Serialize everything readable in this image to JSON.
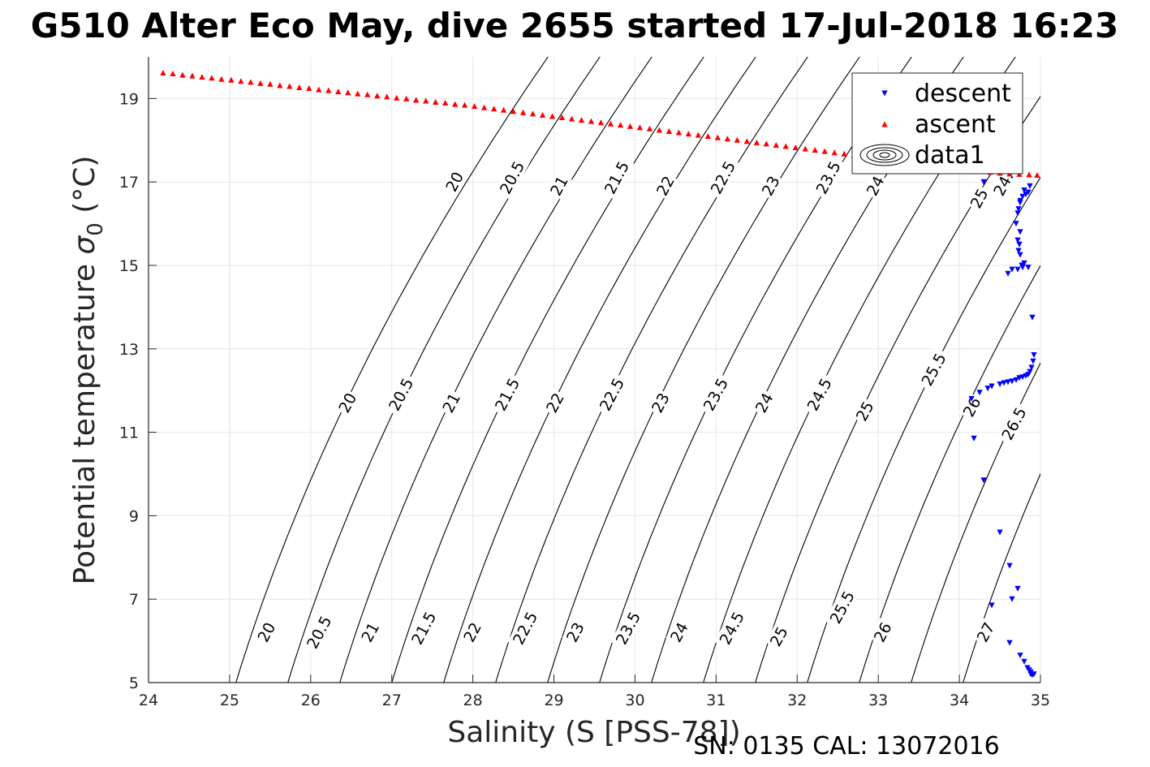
{
  "chart_data": {
    "type": "scatter",
    "title": "G510 Alter Eco May, dive 2655 started 17-Jul-2018 16:23",
    "xlabel": "Salinity (S [PSS-78])",
    "ylabel_prefix": "Potential temperature ",
    "ylabel_symbol": "σ",
    "ylabel_sub": "0",
    "ylabel_suffix": " (°C)",
    "footnote": "SN: 0135  CAL: 13072016",
    "xlim": [
      24,
      35
    ],
    "ylim": [
      5,
      20
    ],
    "xticks": [
      24,
      25,
      26,
      27,
      28,
      29,
      30,
      31,
      32,
      33,
      34,
      35
    ],
    "yticks": [
      5,
      7,
      9,
      11,
      13,
      15,
      17,
      19
    ],
    "grid": true,
    "legend_position": "top-right",
    "legend": [
      {
        "label": "descent",
        "marker": "triangle-down",
        "color": "#0000ff"
      },
      {
        "label": "ascent",
        "marker": "triangle-up",
        "color": "#ff0000"
      },
      {
        "label": "data1",
        "marker": "contour",
        "color": "#000000"
      }
    ],
    "contour_levels": [
      20,
      20.5,
      21,
      21.5,
      22,
      22.5,
      23,
      23.5,
      24,
      24.5,
      25,
      25.5,
      26,
      26.5,
      27
    ],
    "contour_color": "#000000",
    "contour_labels": [
      {
        "text": "20",
        "x": 25.46,
        "y": 6.2
      },
      {
        "text": "20.5",
        "x": 26.11,
        "y": 6.2
      },
      {
        "text": "21",
        "x": 26.74,
        "y": 6.2
      },
      {
        "text": "21.5",
        "x": 27.4,
        "y": 6.3
      },
      {
        "text": "22",
        "x": 28.0,
        "y": 6.2
      },
      {
        "text": "22.5",
        "x": 28.65,
        "y": 6.3
      },
      {
        "text": "23",
        "x": 29.27,
        "y": 6.2
      },
      {
        "text": "23.5",
        "x": 29.92,
        "y": 6.3
      },
      {
        "text": "24",
        "x": 30.55,
        "y": 6.2
      },
      {
        "text": "24.5",
        "x": 31.2,
        "y": 6.3
      },
      {
        "text": "25",
        "x": 31.78,
        "y": 6.1
      },
      {
        "text": "25.5",
        "x": 32.56,
        "y": 6.8
      },
      {
        "text": "26",
        "x": 33.06,
        "y": 6.2
      },
      {
        "text": "27",
        "x": 34.33,
        "y": 6.2
      },
      {
        "text": "20",
        "x": 26.46,
        "y": 11.7
      },
      {
        "text": "20.5",
        "x": 27.12,
        "y": 11.9
      },
      {
        "text": "21",
        "x": 27.74,
        "y": 11.7
      },
      {
        "text": "21.5",
        "x": 28.43,
        "y": 11.9
      },
      {
        "text": "22",
        "x": 29.02,
        "y": 11.7
      },
      {
        "text": "22.5",
        "x": 29.72,
        "y": 11.9
      },
      {
        "text": "23",
        "x": 30.32,
        "y": 11.7
      },
      {
        "text": "23.5",
        "x": 31.0,
        "y": 11.9
      },
      {
        "text": "24",
        "x": 31.6,
        "y": 11.7
      },
      {
        "text": "24.5",
        "x": 32.28,
        "y": 11.9
      },
      {
        "text": "25",
        "x": 32.84,
        "y": 11.5
      },
      {
        "text": "25.5",
        "x": 33.69,
        "y": 12.5
      },
      {
        "text": "26",
        "x": 34.16,
        "y": 11.6
      },
      {
        "text": "26.5",
        "x": 34.68,
        "y": 11.2
      },
      {
        "text": "20",
        "x": 27.78,
        "y": 17.0
      },
      {
        "text": "20.5",
        "x": 28.49,
        "y": 17.1
      },
      {
        "text": "21",
        "x": 29.07,
        "y": 16.9
      },
      {
        "text": "21.5",
        "x": 29.78,
        "y": 17.1
      },
      {
        "text": "22",
        "x": 30.38,
        "y": 16.9
      },
      {
        "text": "22.5",
        "x": 31.09,
        "y": 17.1
      },
      {
        "text": "23",
        "x": 31.68,
        "y": 16.9
      },
      {
        "text": "23.5",
        "x": 32.39,
        "y": 17.1
      },
      {
        "text": "24",
        "x": 32.97,
        "y": 16.9
      },
      {
        "text": "24.",
        "x": 34.55,
        "y": 16.95
      },
      {
        "text": "25",
        "x": 34.25,
        "y": 16.6
      }
    ],
    "series": [
      {
        "name": "descent",
        "marker": "triangle-down",
        "color": "#0000ff",
        "x": [
          34.3,
          34.8,
          34.87,
          34.85,
          34.82,
          34.78,
          34.75,
          34.75,
          34.73,
          34.72,
          34.7,
          34.75,
          34.72,
          34.74,
          34.73,
          34.75,
          34.77,
          34.8,
          34.78,
          34.85,
          34.72,
          34.65,
          34.6,
          34.9,
          34.92,
          34.91,
          34.89,
          34.87,
          34.85,
          34.82,
          34.78,
          34.74,
          34.7,
          34.65,
          34.6,
          34.55,
          34.5,
          34.4,
          34.35,
          34.25,
          34.15,
          34.18,
          34.3,
          34.5,
          34.62,
          34.65,
          34.72,
          34.4,
          34.62,
          34.75,
          34.8,
          34.84,
          34.86,
          34.88,
          34.9,
          34.92,
          34.9,
          34.88
        ],
        "y": [
          17.0,
          16.8,
          16.9,
          16.75,
          16.7,
          16.65,
          16.55,
          16.5,
          16.35,
          16.25,
          16.0,
          15.8,
          15.6,
          15.5,
          15.35,
          15.25,
          15.0,
          15.05,
          14.95,
          14.95,
          14.9,
          14.9,
          14.8,
          13.75,
          12.85,
          12.7,
          12.55,
          12.45,
          12.38,
          12.35,
          12.32,
          12.3,
          12.25,
          12.22,
          12.2,
          12.18,
          12.15,
          12.1,
          12.05,
          11.95,
          11.8,
          10.85,
          9.85,
          8.6,
          7.8,
          7.0,
          7.25,
          6.85,
          5.95,
          5.65,
          5.5,
          5.35,
          5.3,
          5.25,
          5.2,
          5.2,
          5.18,
          5.2
        ]
      },
      {
        "name": "ascent",
        "marker": "triangle-up",
        "color": "#ff0000",
        "x": [
          24.18,
          24.3,
          24.42,
          24.54,
          24.66,
          24.78,
          24.9,
          25.02,
          25.14,
          25.26,
          25.38,
          25.5,
          25.62,
          25.74,
          25.86,
          25.98,
          26.1,
          26.22,
          26.34,
          26.46,
          26.58,
          26.7,
          26.82,
          26.94,
          27.06,
          27.18,
          27.3,
          27.42,
          27.54,
          27.66,
          27.78,
          27.9,
          28.02,
          28.14,
          28.26,
          28.38,
          28.5,
          28.62,
          28.74,
          28.86,
          28.98,
          29.1,
          29.22,
          29.34,
          29.46,
          29.58,
          29.7,
          29.82,
          29.94,
          30.06,
          30.18,
          30.3,
          30.42,
          30.54,
          30.66,
          30.78,
          30.9,
          31.02,
          31.14,
          31.26,
          31.38,
          31.5,
          31.62,
          31.74,
          31.86,
          31.98,
          32.1,
          32.22,
          32.34,
          32.46,
          32.58,
          32.7,
          32.82,
          32.94,
          33.06,
          33.18,
          33.3,
          33.42,
          33.54,
          33.66,
          33.78,
          33.9,
          34.02,
          34.14,
          34.26,
          34.38,
          34.5,
          34.62,
          34.74,
          34.86,
          34.96
        ],
        "y": [
          19.62,
          19.6,
          19.57,
          19.55,
          19.52,
          19.5,
          19.47,
          19.45,
          19.42,
          19.4,
          19.37,
          19.35,
          19.32,
          19.3,
          19.27,
          19.25,
          19.22,
          19.2,
          19.17,
          19.15,
          19.12,
          19.1,
          19.07,
          19.05,
          19.02,
          19.0,
          18.97,
          18.95,
          18.92,
          18.9,
          18.87,
          18.85,
          18.82,
          18.79,
          18.76,
          18.73,
          18.7,
          18.67,
          18.64,
          18.61,
          18.58,
          18.55,
          18.52,
          18.49,
          18.46,
          18.43,
          18.4,
          18.37,
          18.34,
          18.31,
          18.28,
          18.25,
          18.22,
          18.19,
          18.16,
          18.13,
          18.1,
          18.07,
          18.04,
          18.01,
          17.98,
          17.95,
          17.92,
          17.89,
          17.86,
          17.83,
          17.8,
          17.77,
          17.74,
          17.71,
          17.68,
          17.65,
          17.62,
          17.59,
          17.56,
          17.53,
          17.5,
          17.47,
          17.44,
          17.41,
          17.38,
          17.35,
          17.32,
          17.29,
          17.26,
          17.24,
          17.22,
          17.2,
          17.19,
          17.18,
          17.17
        ]
      }
    ]
  }
}
